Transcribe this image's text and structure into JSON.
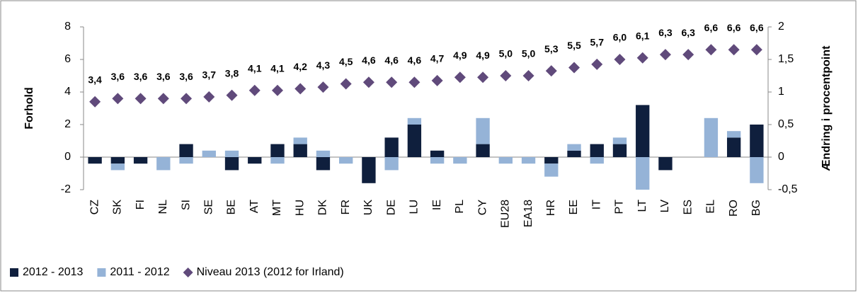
{
  "chart_data": {
    "type": "bar",
    "stacked": true,
    "categories": [
      "CZ",
      "SK",
      "FI",
      "NL",
      "SI",
      "SE",
      "BE",
      "AT",
      "MT",
      "HU",
      "DK",
      "FR",
      "UK",
      "DE",
      "LU",
      "IE",
      "PL",
      "CY",
      "EU28",
      "EA18",
      "HR",
      "EE",
      "IT",
      "PT",
      "LT",
      "LV",
      "ES",
      "EL",
      "RO",
      "BG"
    ],
    "series": [
      {
        "name": "2012 - 2013",
        "color": "#0f1f3d",
        "axis": "y2",
        "values": [
          -0.1,
          -0.1,
          -0.1,
          0,
          0.2,
          0,
          -0.2,
          -0.1,
          0.2,
          0.2,
          -0.2,
          0,
          -0.4,
          0.3,
          0.5,
          0.1,
          0,
          0.2,
          0,
          0,
          -0.1,
          0.1,
          0.2,
          0.2,
          0.8,
          -0.2,
          0,
          0,
          0.3,
          0.5
        ]
      },
      {
        "name": "2011 - 2012",
        "color": "#95b3d7",
        "axis": "y2",
        "values": [
          0,
          -0.1,
          0,
          -0.2,
          -0.1,
          0.1,
          0.1,
          0,
          -0.1,
          0.1,
          0.1,
          -0.1,
          0,
          -0.2,
          0.1,
          -0.1,
          -0.1,
          0.4,
          -0.1,
          -0.1,
          -0.2,
          0.1,
          -0.1,
          0.1,
          -0.5,
          0,
          0,
          0.6,
          0.1,
          -0.4
        ]
      },
      {
        "name": "Niveau 2013 (2012 for Irland)",
        "color": "#604a7b",
        "axis": "y",
        "marker": "diamond",
        "values": [
          3.4,
          3.6,
          3.6,
          3.6,
          3.6,
          3.7,
          3.8,
          4.1,
          4.1,
          4.2,
          4.3,
          4.5,
          4.6,
          4.6,
          4.6,
          4.7,
          4.9,
          4.9,
          5.0,
          5.0,
          5.3,
          5.5,
          5.7,
          6.0,
          6.1,
          6.3,
          6.3,
          6.6,
          6.6,
          6.6
        ],
        "value_labels": [
          "3,4",
          "3,6",
          "3,6",
          "3,6",
          "3,6",
          "3,7",
          "3,8",
          "4,1",
          "4,1",
          "4,2",
          "4,3",
          "4,5",
          "4,6",
          "4,6",
          "4,6",
          "4,7",
          "4,9",
          "4,9",
          "5,0",
          "5,0",
          "5,3",
          "5,5",
          "5,7",
          "6,0",
          "6,1",
          "6,3",
          "6,3",
          "6,6",
          "6,6",
          "6,6"
        ]
      }
    ],
    "y_label": "Forhold",
    "y2_label": "Ændring i procentpoint",
    "ylim": [
      -2,
      8
    ],
    "yticks": [
      -2,
      0,
      2,
      4,
      6,
      8
    ],
    "y2lim": [
      -0.5,
      2
    ],
    "y2ticks": [
      {
        "value": -0.5,
        "label": "-0,5"
      },
      0,
      {
        "value": 0.5,
        "label": "0,5"
      },
      1,
      {
        "value": 1.5,
        "label": "1,5"
      },
      2
    ],
    "legend": "bottom-left"
  }
}
